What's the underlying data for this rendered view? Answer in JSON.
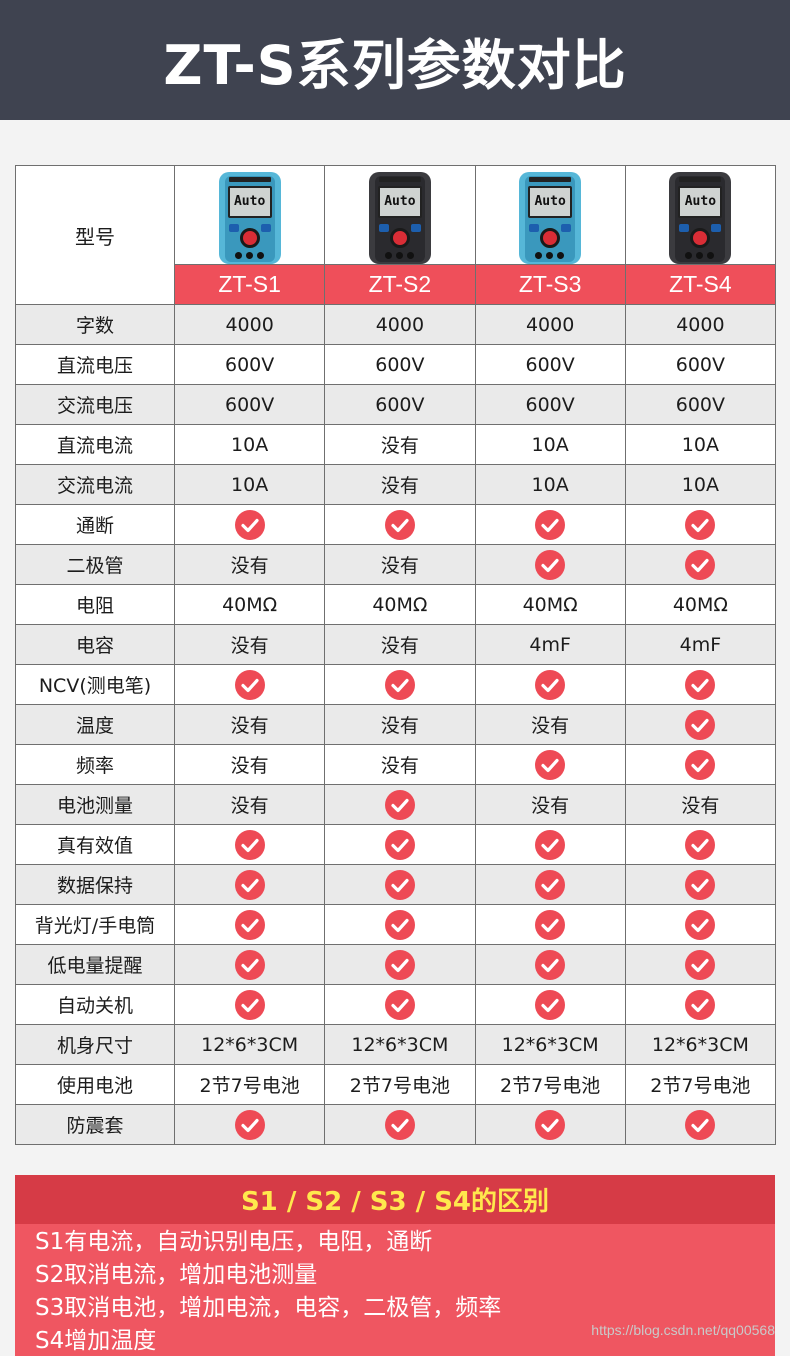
{
  "title": "ZT-S系列参数对比",
  "header_label": "型号",
  "models": [
    {
      "name": "ZT-S1",
      "color": "blue",
      "screen": "Auto"
    },
    {
      "name": "ZT-S2",
      "color": "black",
      "screen": "Auto"
    },
    {
      "name": "ZT-S3",
      "color": "blue",
      "screen": "Auto"
    },
    {
      "name": "ZT-S4",
      "color": "black",
      "screen": "Auto"
    }
  ],
  "check_color": "#ee4a55",
  "rows": [
    {
      "label": "字数",
      "values": [
        "4000",
        "4000",
        "4000",
        "4000"
      ]
    },
    {
      "label": "直流电压",
      "values": [
        "600V",
        "600V",
        "600V",
        "600V"
      ]
    },
    {
      "label": "交流电压",
      "values": [
        "600V",
        "600V",
        "600V",
        "600V"
      ]
    },
    {
      "label": "直流电流",
      "values": [
        "10A",
        "没有",
        "10A",
        "10A"
      ]
    },
    {
      "label": "交流电流",
      "values": [
        "10A",
        "没有",
        "10A",
        "10A"
      ]
    },
    {
      "label": "通断",
      "values": [
        "check",
        "check",
        "check",
        "check"
      ]
    },
    {
      "label": "二极管",
      "values": [
        "没有",
        "没有",
        "check",
        "check"
      ]
    },
    {
      "label": "电阻",
      "values": [
        "40MΩ",
        "40MΩ",
        "40MΩ",
        "40MΩ"
      ]
    },
    {
      "label": "电容",
      "values": [
        "没有",
        "没有",
        "4mF",
        "4mF"
      ]
    },
    {
      "label": "NCV(测电笔)",
      "values": [
        "check",
        "check",
        "check",
        "check"
      ]
    },
    {
      "label": "温度",
      "values": [
        "没有",
        "没有",
        "没有",
        "check"
      ]
    },
    {
      "label": "频率",
      "values": [
        "没有",
        "没有",
        "check",
        "check"
      ]
    },
    {
      "label": "电池测量",
      "values": [
        "没有",
        "check",
        "没有",
        "没有"
      ]
    },
    {
      "label": "真有效值",
      "values": [
        "check",
        "check",
        "check",
        "check"
      ]
    },
    {
      "label": "数据保持",
      "values": [
        "check",
        "check",
        "check",
        "check"
      ]
    },
    {
      "label": "背光灯/手电筒",
      "values": [
        "check",
        "check",
        "check",
        "check"
      ]
    },
    {
      "label": "低电量提醒",
      "values": [
        "check",
        "check",
        "check",
        "check"
      ]
    },
    {
      "label": "自动关机",
      "values": [
        "check",
        "check",
        "check",
        "check"
      ]
    },
    {
      "label": "机身尺寸",
      "values": [
        "12*6*3CM",
        "12*6*3CM",
        "12*6*3CM",
        "12*6*3CM"
      ]
    },
    {
      "label": "使用电池",
      "values": [
        "2节7号电池",
        "2节7号电池",
        "2节7号电池",
        "2节7号电池"
      ]
    },
    {
      "label": "防震套",
      "values": [
        "check",
        "check",
        "check",
        "check"
      ]
    }
  ],
  "differences": {
    "title": "S1 / S2 / S3 / S4的区别",
    "lines": [
      "S1有电流，自动识别电压，电阻，通断",
      "S2取消电流，增加电池测量",
      "S3取消电池，增加电流，电容，二极管，频率",
      "S4增加温度"
    ]
  },
  "watermark": "https://blog.csdn.net/qq00568"
}
